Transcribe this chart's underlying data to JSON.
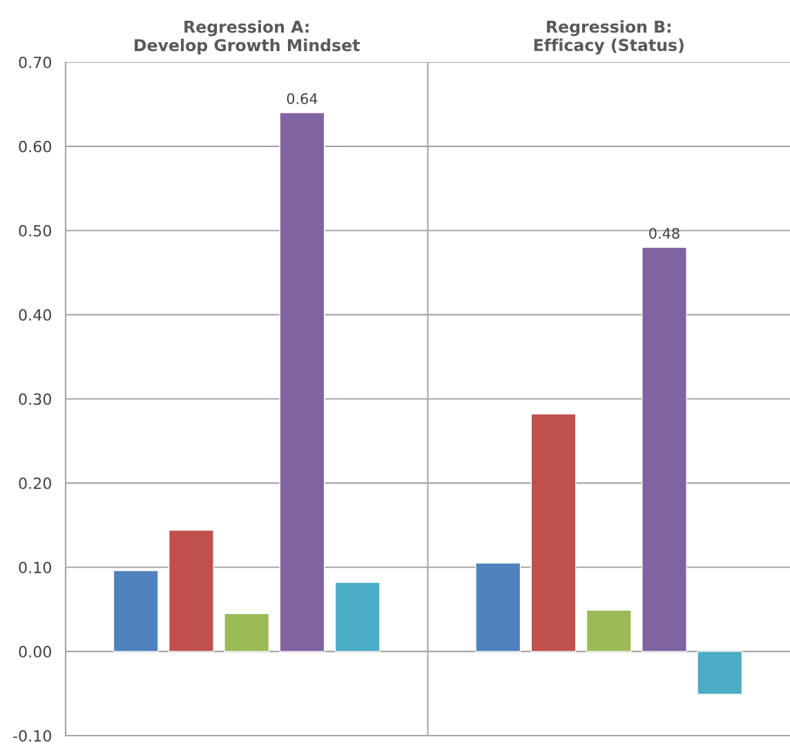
{
  "chart_data": {
    "type": "bar",
    "categories": [
      "Regression A:\nDevelop Growth Mindset",
      "Regression B:\nEfficacy (Status)"
    ],
    "series": [
      {
        "color": "#4f81bd",
        "values": [
          0.096,
          0.105
        ]
      },
      {
        "color": "#c0504d",
        "values": [
          0.144,
          0.282
        ]
      },
      {
        "color": "#9bbb59",
        "values": [
          0.045,
          0.049
        ]
      },
      {
        "color": "#8064a2",
        "values": [
          0.64,
          0.48
        ],
        "value_labels": [
          "0.64",
          "0.48"
        ]
      },
      {
        "color": "#4bacc6",
        "values": [
          0.082,
          -0.051
        ]
      }
    ],
    "ylim": [
      -0.1,
      0.7
    ],
    "yticks": [
      {
        "value": -0.1,
        "label": "-0.10"
      },
      {
        "value": 0,
        "label": "0.00"
      },
      {
        "value": 0.1,
        "label": "0.10"
      },
      {
        "value": 0.2,
        "label": "0.20"
      },
      {
        "value": 0.3,
        "label": "0.30"
      },
      {
        "value": 0.4,
        "label": "0.40"
      },
      {
        "value": 0.5,
        "label": "0.50"
      },
      {
        "value": 0.6,
        "label": "0.60"
      },
      {
        "value": 0.7,
        "label": "0.70"
      }
    ],
    "grid": true,
    "legend": false
  }
}
